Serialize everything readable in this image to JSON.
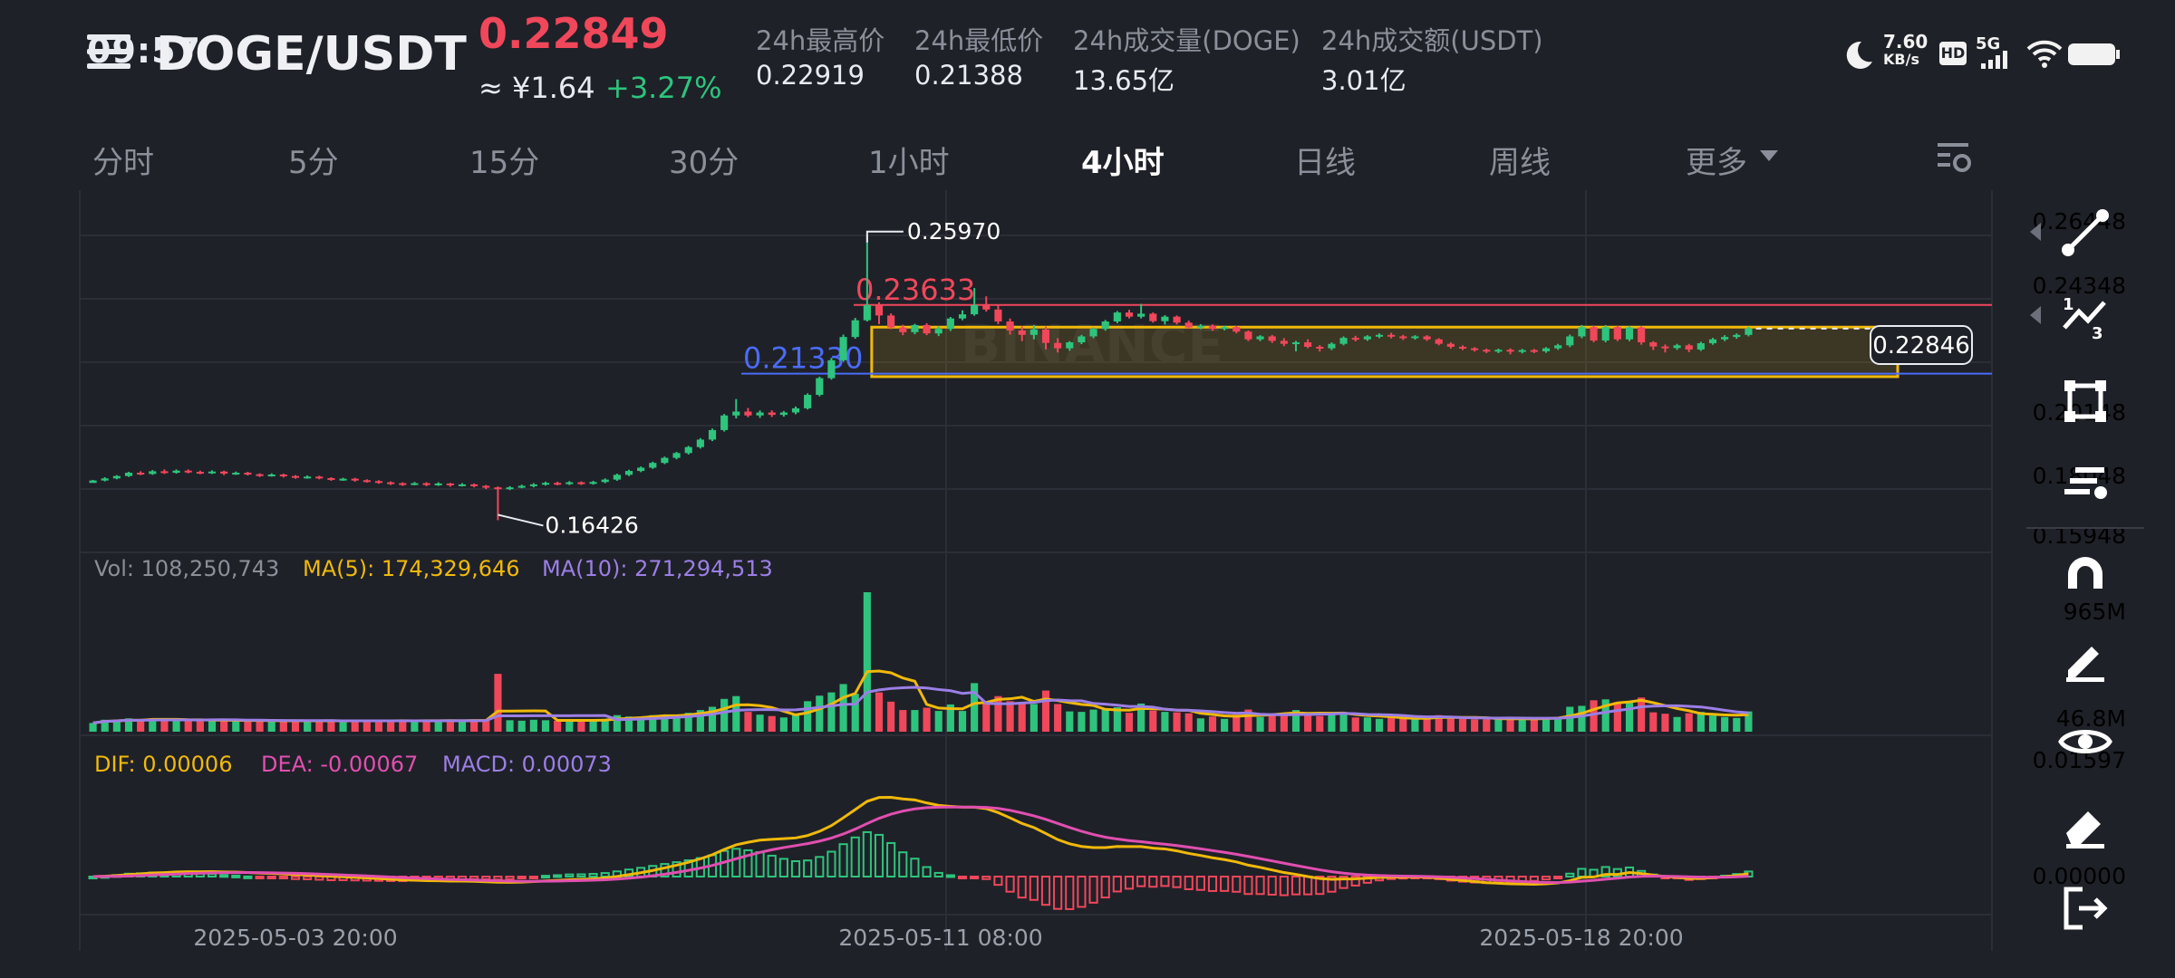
{
  "status_bar": {
    "time": "09:57",
    "speed_value": "7.60",
    "speed_unit": "KB/s",
    "hd": "HD",
    "net": "5G"
  },
  "header": {
    "pair": "DOGE/USDT",
    "price": "0.22849",
    "cny": "≈ ¥1.64",
    "change": "+3.27%",
    "stats": [
      {
        "label": "24h最高价",
        "value": "0.22919"
      },
      {
        "label": "24h最低价",
        "value": "0.21388"
      },
      {
        "label": "24h成交量(DOGE)",
        "value": "13.65亿"
      },
      {
        "label": "24h成交额(USDT)",
        "value": "3.01亿"
      }
    ]
  },
  "tabs": [
    {
      "label": "分时"
    },
    {
      "label": "5分"
    },
    {
      "label": "15分"
    },
    {
      "label": "30分"
    },
    {
      "label": "1小时"
    },
    {
      "label": "4小时",
      "active": true
    },
    {
      "label": "日线"
    },
    {
      "label": "周线"
    },
    {
      "label": "更多"
    }
  ],
  "colors": {
    "up": "#2ec47d",
    "down": "#f0475b",
    "bg": "#1f2128",
    "ma5": "#f0b90b",
    "ma10": "#9b7fe6",
    "dif": "#f0b90b",
    "dea": "#e04fb0"
  },
  "chart_data": {
    "type": "candlestick",
    "price_axis": [
      "0.26448",
      "0.24348",
      "0.22846",
      "0.20148",
      "0.18048",
      "0.15948"
    ],
    "ylim": [
      0.15948,
      0.26448
    ],
    "current_price": "0.22846",
    "high_marker": "0.25970",
    "low_marker": "0.16426",
    "hlines": [
      {
        "label": "0.23633",
        "value": 0.23633,
        "color": "#f0475b"
      },
      {
        "label": "0.21330",
        "value": 0.2133,
        "color": "#4a6cf7"
      }
    ],
    "box": {
      "from": 0.2289,
      "to": 0.2123,
      "color": "#f0b90b"
    },
    "watermark": "BINANCE",
    "candles": [
      [
        0.1767,
        0.1775,
        0.177,
        0.1777
      ],
      [
        0.1775,
        0.1782,
        0.1772,
        0.1786
      ],
      [
        0.1782,
        0.179,
        0.1779,
        0.1793
      ],
      [
        0.179,
        0.1801,
        0.1787,
        0.1804
      ],
      [
        0.1801,
        0.1797,
        0.1793,
        0.1806
      ],
      [
        0.1797,
        0.1806,
        0.1794,
        0.181
      ],
      [
        0.1806,
        0.1801,
        0.1797,
        0.1812
      ],
      [
        0.1801,
        0.1808,
        0.1798,
        0.1812
      ],
      [
        0.1808,
        0.1804,
        0.1799,
        0.1812
      ],
      [
        0.1804,
        0.1801,
        0.1796,
        0.1808
      ],
      [
        0.1801,
        0.1805,
        0.1797,
        0.1809
      ],
      [
        0.1805,
        0.1798,
        0.1793,
        0.1808
      ],
      [
        0.1798,
        0.1801,
        0.1794,
        0.1805
      ],
      [
        0.1801,
        0.1796,
        0.1792,
        0.1804
      ],
      [
        0.1796,
        0.1792,
        0.1787,
        0.1799
      ],
      [
        0.1792,
        0.1795,
        0.1788,
        0.1799
      ],
      [
        0.1795,
        0.179,
        0.1785,
        0.1798
      ],
      [
        0.179,
        0.1786,
        0.1781,
        0.1793
      ],
      [
        0.1786,
        0.1788,
        0.1781,
        0.1792
      ],
      [
        0.1788,
        0.1783,
        0.1779,
        0.1791
      ],
      [
        0.1783,
        0.1779,
        0.1774,
        0.1786
      ],
      [
        0.1779,
        0.1781,
        0.1774,
        0.1784
      ],
      [
        0.1781,
        0.1776,
        0.1771,
        0.1784
      ],
      [
        0.1776,
        0.1773,
        0.1768,
        0.1779
      ],
      [
        0.1773,
        0.1769,
        0.1764,
        0.1776
      ],
      [
        0.1769,
        0.1766,
        0.176,
        0.1772
      ],
      [
        0.1766,
        0.1763,
        0.1757,
        0.1769
      ],
      [
        0.1763,
        0.1766,
        0.1759,
        0.177
      ],
      [
        0.1766,
        0.1761,
        0.1756,
        0.1769
      ],
      [
        0.1761,
        0.1765,
        0.1757,
        0.1769
      ],
      [
        0.1765,
        0.1759,
        0.1754,
        0.1767
      ],
      [
        0.1759,
        0.1762,
        0.1755,
        0.1766
      ],
      [
        0.1762,
        0.1757,
        0.1752,
        0.1765
      ],
      [
        0.1757,
        0.1752,
        0.1746,
        0.176
      ],
      [
        0.1752,
        0.1746,
        0.1642,
        0.1755
      ],
      [
        0.1746,
        0.1752,
        0.1743,
        0.1756
      ],
      [
        0.1752,
        0.1757,
        0.1749,
        0.1761
      ],
      [
        0.1757,
        0.1762,
        0.1752,
        0.1766
      ],
      [
        0.1762,
        0.1767,
        0.1758,
        0.1771
      ],
      [
        0.1767,
        0.1764,
        0.1759,
        0.1771
      ],
      [
        0.1764,
        0.1769,
        0.176,
        0.1773
      ],
      [
        0.1769,
        0.1765,
        0.176,
        0.1772
      ],
      [
        0.1765,
        0.177,
        0.1761,
        0.1774
      ],
      [
        0.177,
        0.1778,
        0.1766,
        0.1782
      ],
      [
        0.1778,
        0.1794,
        0.1774,
        0.1798
      ],
      [
        0.1794,
        0.1807,
        0.179,
        0.1811
      ],
      [
        0.1807,
        0.1818,
        0.1803,
        0.1822
      ],
      [
        0.1818,
        0.1834,
        0.1814,
        0.1838
      ],
      [
        0.1834,
        0.1851,
        0.183,
        0.1855
      ],
      [
        0.1851,
        0.1867,
        0.1846,
        0.1871
      ],
      [
        0.1867,
        0.1887,
        0.1862,
        0.1891
      ],
      [
        0.1887,
        0.1912,
        0.1882,
        0.1917
      ],
      [
        0.1912,
        0.1944,
        0.1907,
        0.1949
      ],
      [
        0.1944,
        0.1993,
        0.1939,
        0.1998
      ],
      [
        0.1993,
        0.2006,
        0.1983,
        0.2048
      ],
      [
        0.2006,
        0.1993,
        0.1987,
        0.2018
      ],
      [
        0.1993,
        0.2003,
        0.1985,
        0.201
      ],
      [
        0.2003,
        0.1995,
        0.1988,
        0.201
      ],
      [
        0.1995,
        0.2003,
        0.1989,
        0.2008
      ],
      [
        0.2003,
        0.2017,
        0.1997,
        0.2023
      ],
      [
        0.2017,
        0.2062,
        0.2013,
        0.2067
      ],
      [
        0.2062,
        0.2118,
        0.2057,
        0.2123
      ],
      [
        0.2118,
        0.2178,
        0.2113,
        0.2186
      ],
      [
        0.2178,
        0.2256,
        0.2173,
        0.2264
      ],
      [
        0.2256,
        0.2312,
        0.225,
        0.232
      ],
      [
        0.2312,
        0.2363,
        0.2308,
        0.2597
      ],
      [
        0.2363,
        0.2328,
        0.2299,
        0.2372
      ],
      [
        0.2328,
        0.2288,
        0.2282,
        0.2335
      ],
      [
        0.2288,
        0.2272,
        0.2262,
        0.2297
      ],
      [
        0.2272,
        0.2296,
        0.2265,
        0.23
      ],
      [
        0.2296,
        0.2268,
        0.2262,
        0.2302
      ],
      [
        0.2268,
        0.2283,
        0.2259,
        0.2292
      ],
      [
        0.2283,
        0.2318,
        0.2276,
        0.2323
      ],
      [
        0.2318,
        0.2332,
        0.2312,
        0.2345
      ],
      [
        0.2332,
        0.2363,
        0.2327,
        0.242
      ],
      [
        0.2363,
        0.2348,
        0.2341,
        0.2392
      ],
      [
        0.2348,
        0.2308,
        0.2299,
        0.2364
      ],
      [
        0.2308,
        0.2278,
        0.2264,
        0.2318
      ],
      [
        0.2278,
        0.2263,
        0.2242,
        0.2292
      ],
      [
        0.2263,
        0.2281,
        0.2248,
        0.2296
      ],
      [
        0.2281,
        0.2236,
        0.2214,
        0.2291
      ],
      [
        0.2236,
        0.2218,
        0.2204,
        0.2252
      ],
      [
        0.2218,
        0.2238,
        0.221,
        0.2242
      ],
      [
        0.2238,
        0.2258,
        0.2232,
        0.2263
      ],
      [
        0.2258,
        0.2283,
        0.2252,
        0.2288
      ],
      [
        0.2283,
        0.2308,
        0.2277,
        0.2313
      ],
      [
        0.2308,
        0.2338,
        0.2302,
        0.2343
      ],
      [
        0.2338,
        0.2324,
        0.2318,
        0.2347
      ],
      [
        0.2324,
        0.2334,
        0.2318,
        0.2367
      ],
      [
        0.2334,
        0.2309,
        0.2304,
        0.2338
      ],
      [
        0.2309,
        0.2324,
        0.2298,
        0.2329
      ],
      [
        0.2324,
        0.2304,
        0.2298,
        0.2328
      ],
      [
        0.2304,
        0.2288,
        0.2283,
        0.2311
      ],
      [
        0.2288,
        0.2294,
        0.2282,
        0.2299
      ],
      [
        0.2294,
        0.2283,
        0.2277,
        0.2298
      ],
      [
        0.2283,
        0.2289,
        0.2278,
        0.2294
      ],
      [
        0.2289,
        0.2274,
        0.2268,
        0.2293
      ],
      [
        0.2274,
        0.2248,
        0.2242,
        0.2278
      ],
      [
        0.2248,
        0.2258,
        0.2242,
        0.2262
      ],
      [
        0.2258,
        0.2243,
        0.2236,
        0.2263
      ],
      [
        0.2243,
        0.2233,
        0.2225,
        0.2252
      ],
      [
        0.2233,
        0.2238,
        0.2208,
        0.2243
      ],
      [
        0.2238,
        0.2223,
        0.2218,
        0.2248
      ],
      [
        0.2223,
        0.2218,
        0.2207,
        0.2229
      ],
      [
        0.2218,
        0.2233,
        0.2212,
        0.2238
      ],
      [
        0.2233,
        0.2253,
        0.2228,
        0.2258
      ],
      [
        0.2253,
        0.2248,
        0.2241,
        0.226
      ],
      [
        0.2248,
        0.2258,
        0.2243,
        0.2262
      ],
      [
        0.2258,
        0.2263,
        0.2252,
        0.2268
      ],
      [
        0.2263,
        0.2258,
        0.2251,
        0.227
      ],
      [
        0.2258,
        0.2253,
        0.2246,
        0.2263
      ],
      [
        0.2253,
        0.2258,
        0.2247,
        0.2262
      ],
      [
        0.2258,
        0.2248,
        0.2243,
        0.2262
      ],
      [
        0.2248,
        0.2233,
        0.2228,
        0.2252
      ],
      [
        0.2233,
        0.2223,
        0.2217,
        0.2238
      ],
      [
        0.2223,
        0.2218,
        0.2212,
        0.2228
      ],
      [
        0.2218,
        0.2213,
        0.2207,
        0.2222
      ],
      [
        0.2213,
        0.2208,
        0.2202,
        0.2217
      ],
      [
        0.2208,
        0.2213,
        0.2202,
        0.2217
      ],
      [
        0.2213,
        0.2207,
        0.2198,
        0.2218
      ],
      [
        0.2207,
        0.2212,
        0.2201,
        0.2216
      ],
      [
        0.2212,
        0.2208,
        0.2202,
        0.2216
      ],
      [
        0.2208,
        0.2218,
        0.2203,
        0.2222
      ],
      [
        0.2218,
        0.2228,
        0.2213,
        0.2233
      ],
      [
        0.2228,
        0.2258,
        0.2222,
        0.2264
      ],
      [
        0.2258,
        0.2289,
        0.2252,
        0.2296
      ],
      [
        0.2289,
        0.2244,
        0.2238,
        0.2294
      ],
      [
        0.2244,
        0.2289,
        0.2238,
        0.2296
      ],
      [
        0.2289,
        0.2248,
        0.2242,
        0.2294
      ],
      [
        0.2248,
        0.2288,
        0.2242,
        0.2294
      ],
      [
        0.2288,
        0.2238,
        0.223,
        0.2292
      ],
      [
        0.2238,
        0.2224,
        0.2212,
        0.2242
      ],
      [
        0.2224,
        0.2219,
        0.2204,
        0.2231
      ],
      [
        0.2219,
        0.2228,
        0.2213,
        0.2233
      ],
      [
        0.2228,
        0.2214,
        0.2205,
        0.2233
      ],
      [
        0.2214,
        0.2235,
        0.2209,
        0.224
      ],
      [
        0.2235,
        0.2248,
        0.223,
        0.2253
      ],
      [
        0.2248,
        0.2256,
        0.2242,
        0.2262
      ],
      [
        0.2256,
        0.2263,
        0.225,
        0.2268
      ],
      [
        0.2263,
        0.2284,
        0.2258,
        0.229
      ]
    ],
    "volume_label": "Vol: 108,250,743",
    "ma5_label": "MA(5): 174,329,646",
    "ma10_label": "MA(10): 271,294,513",
    "vol_axis": [
      "965M",
      "46.8M"
    ],
    "vol_ylim": [
      46.8,
      965
    ],
    "dif_label": "DIF: 0.00006",
    "dea_label": "DEA: -0.00067",
    "macd_label": "MACD: 0.00073",
    "macd_axis": [
      "0.01597",
      "0.00000"
    ],
    "dates": [
      "2025-05-03 20:00",
      "2025-05-11 08:00",
      "2025-05-18 20:00"
    ]
  }
}
